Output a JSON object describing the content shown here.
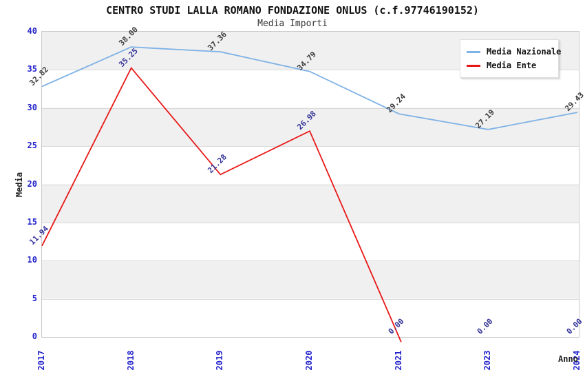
{
  "title": "CENTRO STUDI LALLA ROMANO FONDAZIONE ONLUS (c.f.97746190152)",
  "subtitle": "Media Importi",
  "axes": {
    "x_title": "Anno",
    "y_title": "Media",
    "y_ticks": [
      0,
      5,
      10,
      15,
      20,
      25,
      30,
      35,
      40
    ],
    "x_tick_color": "#2222cc",
    "y_tick_color": "#2222cc"
  },
  "legend": {
    "position": "top-right",
    "items": [
      {
        "label": "Media Nazionale",
        "color": "#7fb2e5"
      },
      {
        "label": "Media Ente",
        "color": "#e81717"
      }
    ]
  },
  "chart_data": {
    "type": "line",
    "title": "CENTRO STUDI LALLA ROMANO FONDAZIONE ONLUS (c.f.97746190152)",
    "subtitle": "Media Importi",
    "xlabel": "Anno",
    "ylabel": "Media",
    "ylim": [
      0,
      40
    ],
    "grid": "horizontal gridlines every 5 units, alternating gray/white bands",
    "legend_position": "top-right",
    "categories": [
      "2017",
      "2018",
      "2019",
      "2020",
      "2021",
      "2023",
      "2024"
    ],
    "series": [
      {
        "name": "Media Nazionale",
        "color": "#7fb2e5",
        "label_color": "#3c3c3c",
        "values": [
          32.82,
          38.0,
          37.36,
          34.79,
          29.24,
          27.19,
          29.43
        ]
      },
      {
        "name": "Media Ente",
        "color": "#e81717",
        "label_color": "#333399",
        "values": [
          11.94,
          35.25,
          21.28,
          26.98,
          0.0,
          0.0,
          0.0
        ],
        "line_drawn_through_index": 4
      }
    ]
  }
}
